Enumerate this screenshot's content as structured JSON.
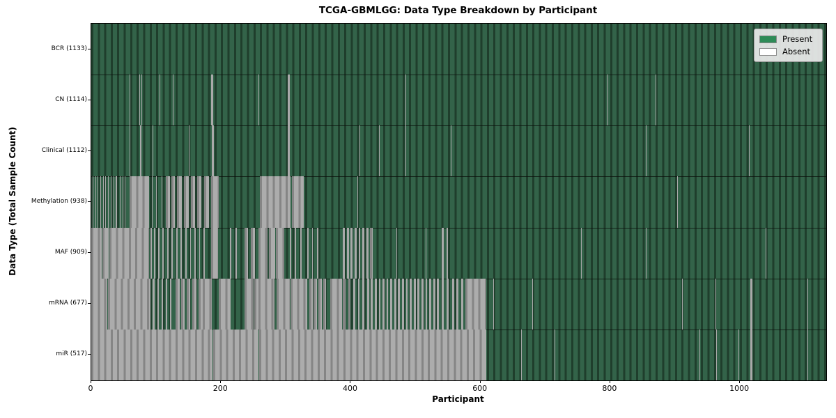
{
  "title": "TCGA-GBMLGG: Data Type Breakdown by Participant",
  "colors": {
    "present_fill": "#2e8b57",
    "present_stripe_dark": "#1f3e2c",
    "present_stripe_light": "#336349",
    "absent_fill": "#ffffff",
    "absent_stripe_dark": "#858585",
    "absent_stripe_light": "#acacac",
    "background": "#ffffff",
    "legend_background": "#eaeaea"
  },
  "chart_data": {
    "type": "heatmap",
    "title": "TCGA-GBMLGG: Data Type Breakdown by Participant",
    "xlabel": "Participant",
    "ylabel": "Data Type (Total Sample Count)",
    "x_ticks": [
      0,
      200,
      400,
      600,
      800,
      1000
    ],
    "x_max": 1133,
    "grid": false,
    "legend_position": "upper right",
    "legend": [
      {
        "label": "Present",
        "color": "#2e8b57"
      },
      {
        "label": "Absent",
        "color": "#ffffff"
      }
    ],
    "cell_states": [
      "present",
      "absent"
    ],
    "rows": [
      {
        "name": "BCR",
        "label": "BCR (1133)",
        "present_count": 1133,
        "absent_ranges": []
      },
      {
        "name": "CN",
        "label": "CN (1114)",
        "present_count": 1114,
        "absent_ranges": [
          [
            59,
            60
          ],
          [
            74,
            75
          ],
          [
            77,
            78
          ],
          [
            105,
            106
          ],
          [
            126,
            127
          ],
          [
            185,
            188
          ],
          [
            258,
            259
          ],
          [
            303,
            306
          ],
          [
            484,
            485
          ],
          [
            796,
            797
          ],
          [
            870,
            871
          ]
        ]
      },
      {
        "name": "Clinical",
        "label": "Clinical (1112)",
        "present_count": 1112,
        "absent_ranges": [
          [
            59,
            60
          ],
          [
            75,
            77
          ],
          [
            94,
            95
          ],
          [
            150,
            151
          ],
          [
            186,
            189
          ],
          [
            303,
            306
          ],
          [
            413,
            414
          ],
          [
            443,
            444
          ],
          [
            484,
            485
          ],
          [
            554,
            555
          ],
          [
            855,
            856
          ],
          [
            1014,
            1015
          ]
        ]
      },
      {
        "name": "Methylation",
        "label": "Methylation (938)",
        "present_count": 938,
        "absent_ranges": [
          [
            2,
            3
          ],
          [
            6,
            7
          ],
          [
            10,
            11
          ],
          [
            14,
            15
          ],
          [
            18,
            19
          ],
          [
            22,
            23
          ],
          [
            26,
            27
          ],
          [
            30,
            31
          ],
          [
            34,
            35
          ],
          [
            38,
            40
          ],
          [
            44,
            45
          ],
          [
            48,
            49
          ],
          [
            52,
            53
          ],
          [
            59,
            89
          ],
          [
            93,
            94
          ],
          [
            100,
            101
          ],
          [
            108,
            109
          ],
          [
            115,
            121
          ],
          [
            124,
            129
          ],
          [
            132,
            140
          ],
          [
            143,
            150
          ],
          [
            154,
            160
          ],
          [
            163,
            170
          ],
          [
            174,
            181
          ],
          [
            185,
            197
          ],
          [
            260,
            307
          ],
          [
            309,
            328
          ],
          [
            410,
            411
          ],
          [
            903,
            904
          ]
        ]
      },
      {
        "name": "MAF",
        "label": "MAF (909)",
        "present_count": 909,
        "absent_ranges": [
          [
            0,
            16
          ],
          [
            17,
            27
          ],
          [
            28,
            89
          ],
          [
            91,
            93
          ],
          [
            97,
            99
          ],
          [
            103,
            105
          ],
          [
            110,
            112
          ],
          [
            117,
            119
          ],
          [
            124,
            126
          ],
          [
            131,
            133
          ],
          [
            138,
            140
          ],
          [
            145,
            147
          ],
          [
            152,
            154
          ],
          [
            159,
            161
          ],
          [
            166,
            168
          ],
          [
            173,
            175
          ],
          [
            185,
            196
          ],
          [
            214,
            216
          ],
          [
            222,
            224
          ],
          [
            236,
            242
          ],
          [
            246,
            252
          ],
          [
            258,
            272
          ],
          [
            274,
            283
          ],
          [
            285,
            297
          ],
          [
            306,
            308
          ],
          [
            314,
            316
          ],
          [
            322,
            324
          ],
          [
            333,
            335
          ],
          [
            340,
            342
          ],
          [
            348,
            350
          ],
          [
            388,
            391
          ],
          [
            394,
            397
          ],
          [
            400,
            403
          ],
          [
            406,
            409
          ],
          [
            412,
            415
          ],
          [
            418,
            421
          ],
          [
            424,
            427
          ],
          [
            430,
            434
          ],
          [
            470,
            471
          ],
          [
            516,
            517
          ],
          [
            540,
            543
          ],
          [
            548,
            550
          ],
          [
            755,
            756
          ],
          [
            855,
            856
          ],
          [
            1040,
            1041
          ]
        ]
      },
      {
        "name": "mRNA",
        "label": "mRNA (677)",
        "present_count": 677,
        "absent_ranges": [
          [
            0,
            25
          ],
          [
            26,
            91
          ],
          [
            95,
            98
          ],
          [
            102,
            104
          ],
          [
            108,
            111
          ],
          [
            115,
            117
          ],
          [
            121,
            124
          ],
          [
            130,
            136
          ],
          [
            139,
            144
          ],
          [
            147,
            153
          ],
          [
            156,
            162
          ],
          [
            165,
            172
          ],
          [
            172,
            186
          ],
          [
            196,
            215
          ],
          [
            236,
            250
          ],
          [
            251,
            258
          ],
          [
            258,
            282
          ],
          [
            286,
            306
          ],
          [
            307,
            333
          ],
          [
            336,
            341
          ],
          [
            343,
            348
          ],
          [
            350,
            355
          ],
          [
            358,
            362
          ],
          [
            368,
            387
          ],
          [
            388,
            392
          ],
          [
            396,
            400
          ],
          [
            404,
            407
          ],
          [
            411,
            414
          ],
          [
            418,
            421
          ],
          [
            425,
            428
          ],
          [
            431,
            434
          ],
          [
            437,
            440
          ],
          [
            443,
            446
          ],
          [
            449,
            452
          ],
          [
            455,
            458
          ],
          [
            461,
            464
          ],
          [
            467,
            470
          ],
          [
            473,
            476
          ],
          [
            479,
            482
          ],
          [
            485,
            488
          ],
          [
            491,
            494
          ],
          [
            497,
            500
          ],
          [
            503,
            506
          ],
          [
            509,
            512
          ],
          [
            515,
            518
          ],
          [
            521,
            524
          ],
          [
            527,
            530
          ],
          [
            533,
            536
          ],
          [
            540,
            543
          ],
          [
            548,
            551
          ],
          [
            556,
            559
          ],
          [
            563,
            566
          ],
          [
            570,
            573
          ],
          [
            577,
            609
          ],
          [
            620,
            621
          ],
          [
            680,
            681
          ],
          [
            911,
            912
          ],
          [
            962,
            963
          ],
          [
            1016,
            1019
          ],
          [
            1104,
            1105
          ]
        ]
      },
      {
        "name": "miR",
        "label": "miR (517)",
        "present_count": 517,
        "absent_ranges": [
          [
            0,
            187
          ],
          [
            188,
            258
          ],
          [
            259,
            609
          ],
          [
            663,
            664
          ],
          [
            714,
            715
          ],
          [
            938,
            939
          ],
          [
            963,
            964
          ],
          [
            998,
            999
          ],
          [
            1016,
            1019
          ],
          [
            1104,
            1105
          ]
        ]
      }
    ]
  }
}
